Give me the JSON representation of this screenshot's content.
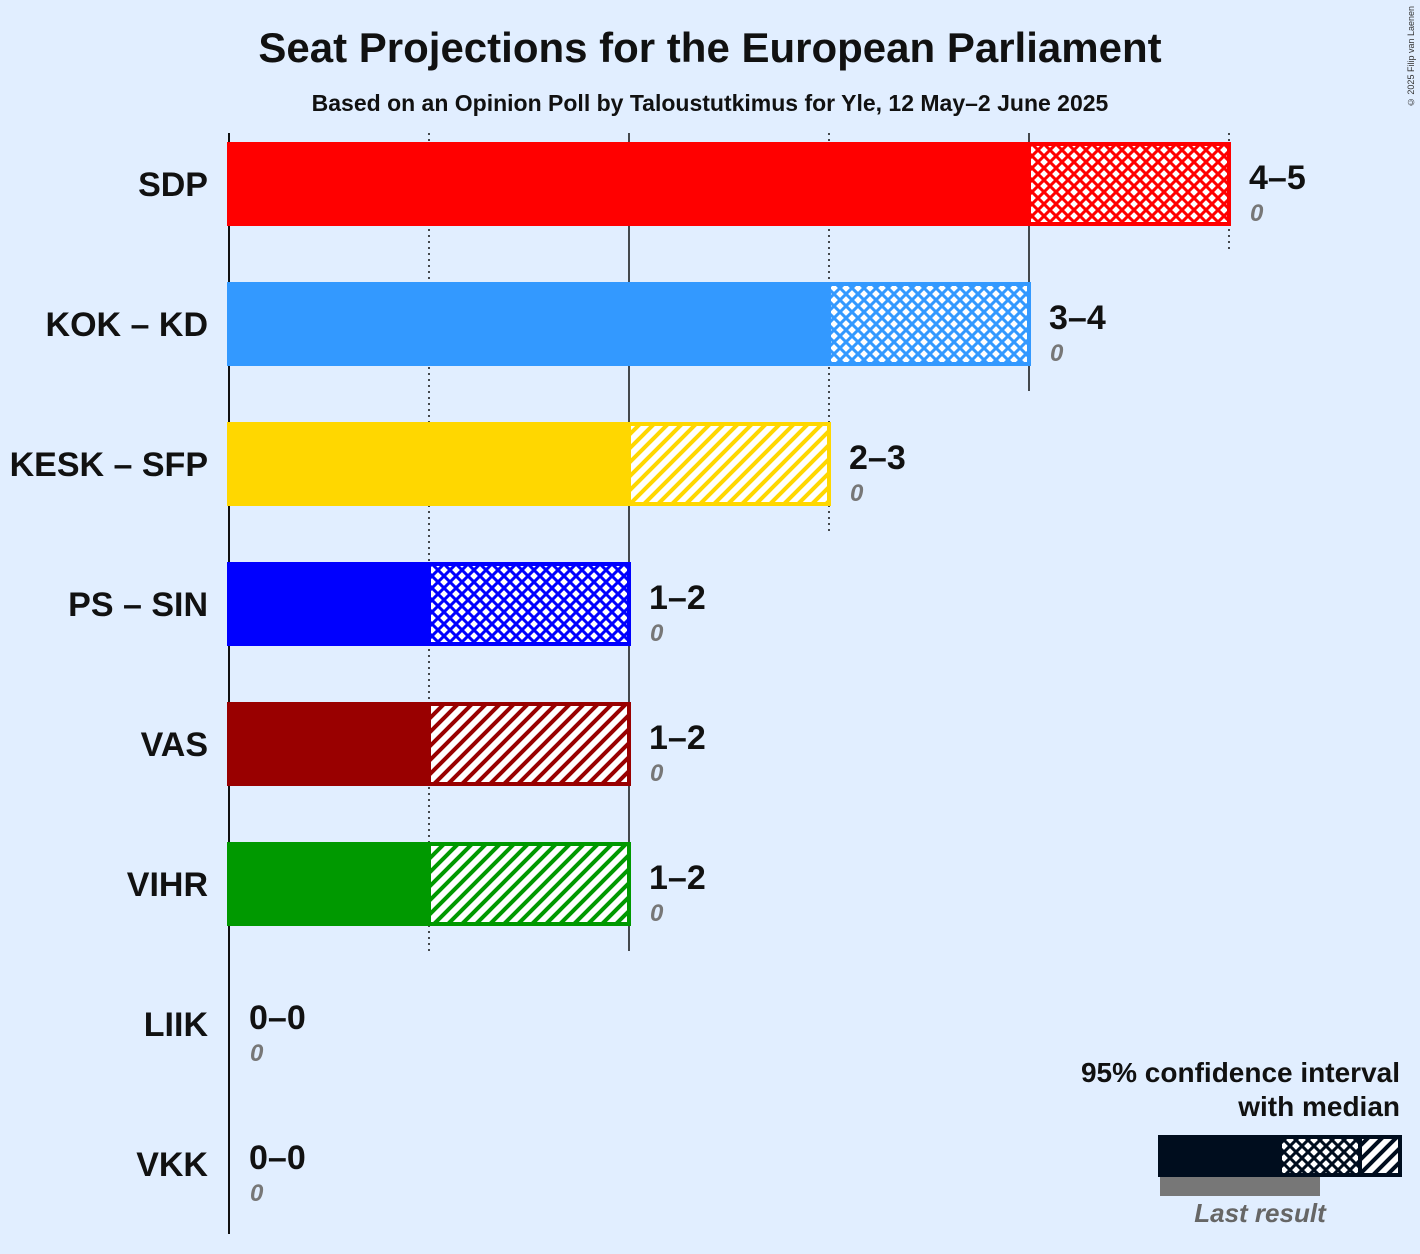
{
  "title": "Seat Projections for the European Parliament",
  "subtitle": "Based on an Opinion Poll by Taloustutkimus for Yle, 12 May–2 June 2025",
  "copyright": "© 2025 Filip van Laenen",
  "legend": {
    "title_line1": "95% confidence interval",
    "title_line2": "with median",
    "last_result": "Last result"
  },
  "chart_data": {
    "type": "bar",
    "orientation": "horizontal",
    "x_range": [
      0,
      5
    ],
    "grid": true,
    "series_description": [
      "ci_low",
      "median",
      "ci_high",
      "last_result"
    ],
    "categories": [
      "SDP",
      "KOK – KD",
      "KESK – SFP",
      "PS – SIN",
      "VAS",
      "VIHR",
      "LIIK",
      "VKK"
    ],
    "bars": [
      {
        "party": "SDP",
        "ci_low": 4,
        "median": 4,
        "ci_high": 5,
        "range_label": "4–5",
        "last_result": 0,
        "last_label": "0",
        "color": "#ff0000",
        "median_in_upper": false
      },
      {
        "party": "KOK – KD",
        "ci_low": 3,
        "median": 3,
        "ci_high": 4,
        "range_label": "3–4",
        "last_result": 0,
        "last_label": "0",
        "color": "#3399ff",
        "median_in_upper": false
      },
      {
        "party": "KESK – SFP",
        "ci_low": 2,
        "median": 3,
        "ci_high": 3,
        "range_label": "2–3",
        "last_result": 0,
        "last_label": "0",
        "color": "#ffd700",
        "median_in_upper": true
      },
      {
        "party": "PS – SIN",
        "ci_low": 1,
        "median": 1,
        "ci_high": 2,
        "range_label": "1–2",
        "last_result": 0,
        "last_label": "0",
        "color": "#0000ff",
        "median_in_upper": false
      },
      {
        "party": "VAS",
        "ci_low": 1,
        "median": 2,
        "ci_high": 2,
        "range_label": "1–2",
        "last_result": 0,
        "last_label": "0",
        "color": "#990000",
        "median_in_upper": true
      },
      {
        "party": "VIHR",
        "ci_low": 1,
        "median": 2,
        "ci_high": 2,
        "range_label": "1–2",
        "last_result": 0,
        "last_label": "0",
        "color": "#009900",
        "median_in_upper": true
      },
      {
        "party": "LIIK",
        "ci_low": 0,
        "median": 0,
        "ci_high": 0,
        "range_label": "0–0",
        "last_result": 0,
        "last_label": "0",
        "color": "#888888",
        "median_in_upper": false
      },
      {
        "party": "VKK",
        "ci_low": 0,
        "median": 0,
        "ci_high": 0,
        "range_label": "0–0",
        "last_result": 0,
        "last_label": "0",
        "color": "#888888",
        "median_in_upper": false
      }
    ]
  }
}
